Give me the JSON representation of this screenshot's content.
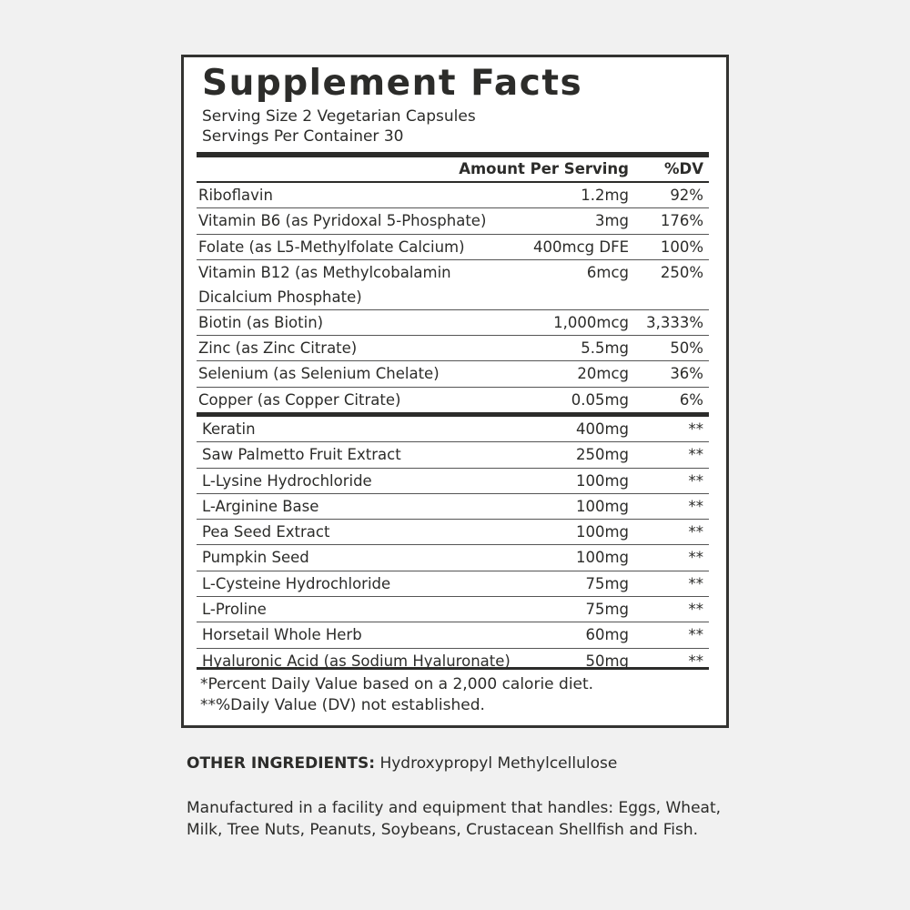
{
  "title": "Supplement Facts",
  "serving_size": "Serving Size 2 Vegetarian Capsules",
  "servings_per_container": "Servings Per Container 30",
  "header": {
    "amount": "Amount Per Serving",
    "dv": "%DV"
  },
  "vitamins": [
    {
      "name": "Riboflavin",
      "amount": "1.2mg",
      "dv": "92%"
    },
    {
      "name": "Vitamin B6 (as Pyridoxal 5-Phosphate)",
      "amount": "3mg",
      "dv": "176%"
    },
    {
      "name": "Folate (as L5-Methylfolate Calcium)",
      "amount": "400mcg DFE",
      "dv": "100%"
    },
    {
      "name": "Vitamin B12 (as Methylcobalamin Dicalcium Phosphate)",
      "amount": "6mcg",
      "dv": "250%"
    },
    {
      "name": "Biotin (as Biotin)",
      "amount": "1,000mcg",
      "dv": "3,333%"
    },
    {
      "name": "Zinc (as Zinc Citrate)",
      "amount": "5.5mg",
      "dv": "50%"
    },
    {
      "name": "Selenium (as Selenium Chelate)",
      "amount": "20mcg",
      "dv": "36%"
    },
    {
      "name": "Copper (as Copper Citrate)",
      "amount": "0.05mg",
      "dv": "6%"
    }
  ],
  "others": [
    {
      "name": "Keratin",
      "amount": "400mg",
      "dv": "**"
    },
    {
      "name": "Saw Palmetto Fruit Extract",
      "amount": "250mg",
      "dv": "**"
    },
    {
      "name": "L-Lysine Hydrochloride",
      "amount": "100mg",
      "dv": "**"
    },
    {
      "name": "L-Arginine Base",
      "amount": "100mg",
      "dv": "**"
    },
    {
      "name": "Pea Seed Extract",
      "amount": "100mg",
      "dv": "**"
    },
    {
      "name": "Pumpkin Seed",
      "amount": "100mg",
      "dv": "**"
    },
    {
      "name": "L-Cysteine Hydrochloride",
      "amount": "75mg",
      "dv": "**"
    },
    {
      "name": "L-Proline",
      "amount": "75mg",
      "dv": "**"
    },
    {
      "name": "Horsetail Whole Herb",
      "amount": "60mg",
      "dv": "**"
    },
    {
      "name": "Hyaluronic Acid (as Sodium Hyaluronate)",
      "amount": "50mg",
      "dv": "**"
    }
  ],
  "footnotes": [
    "*Percent Daily Value based on a 2,000 calorie diet.",
    "**%Daily Value (DV) not established."
  ],
  "other_ingredients": {
    "label": "OTHER INGREDIENTS:",
    "value": "Hydroxypropyl Methylcellulose"
  },
  "allergen": "Manufactured in a facility and equipment that handles: Eggs, Wheat, Milk, Tree Nuts, Peanuts, Soybeans, Crustacean Shellfish and Fish."
}
